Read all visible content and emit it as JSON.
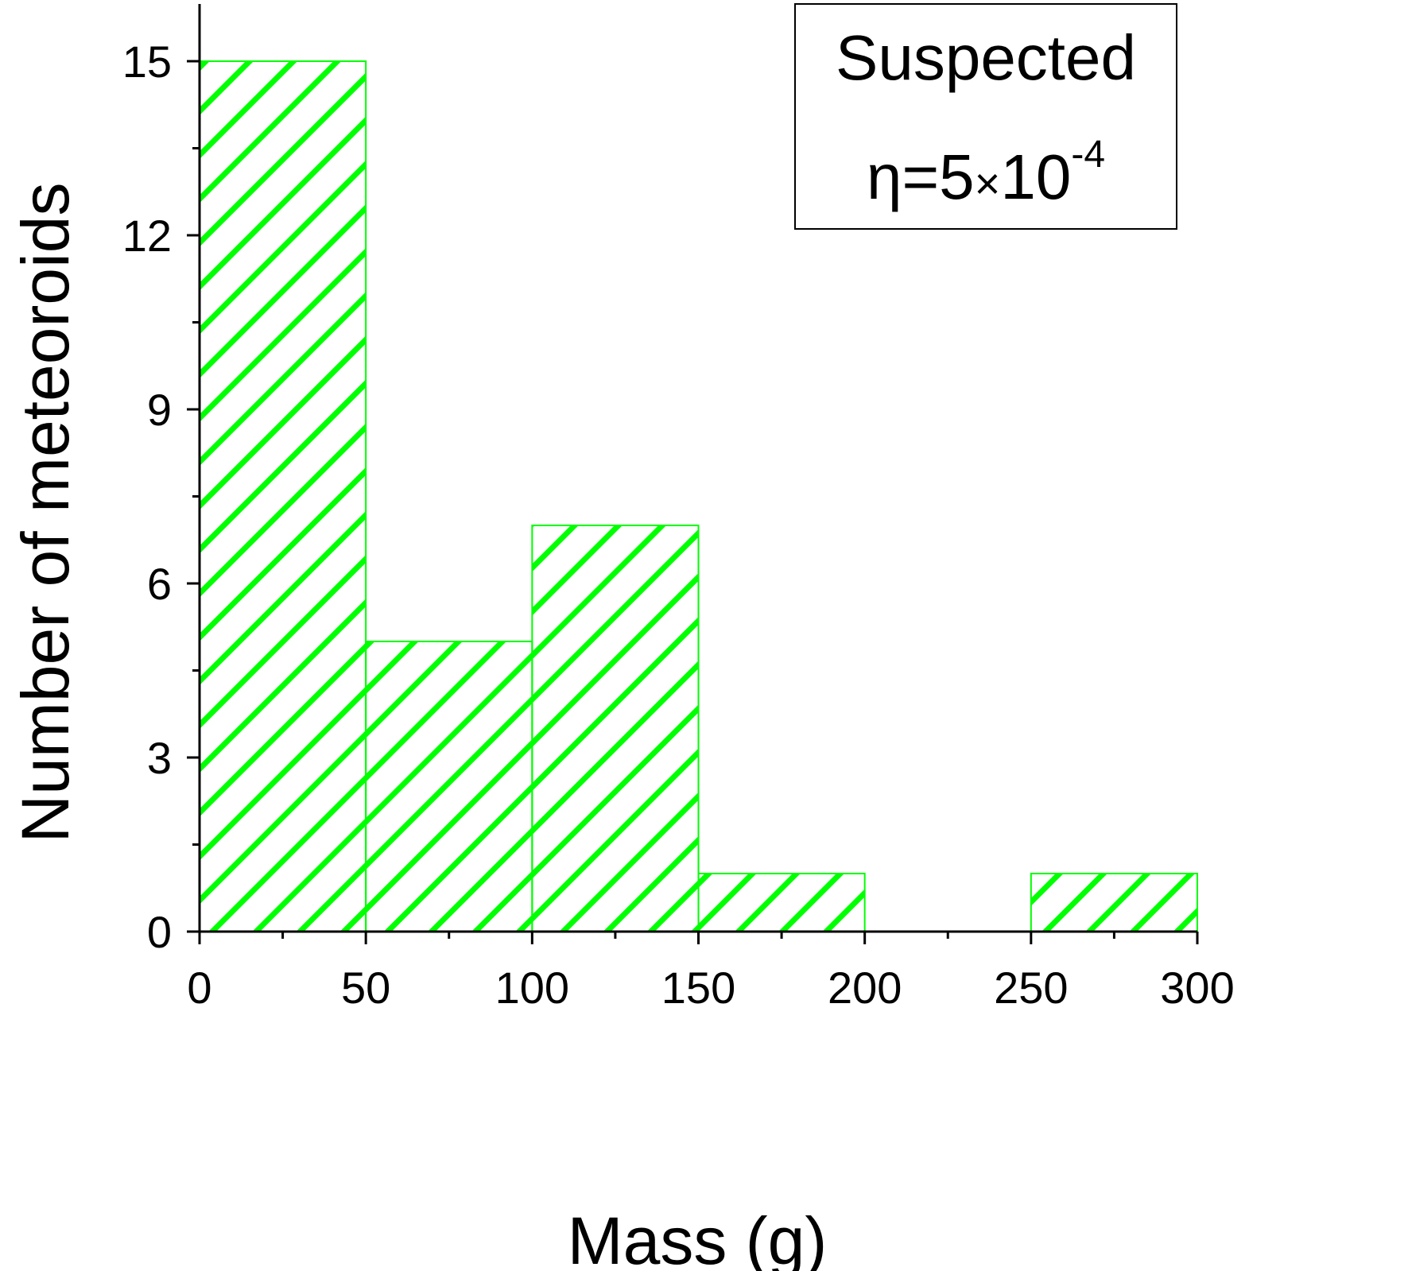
{
  "chart_data": {
    "type": "bar",
    "subtype": "histogram",
    "bins": [
      {
        "x_start": 0,
        "x_end": 50,
        "count": 15
      },
      {
        "x_start": 50,
        "x_end": 100,
        "count": 5
      },
      {
        "x_start": 100,
        "x_end": 150,
        "count": 7
      },
      {
        "x_start": 150,
        "x_end": 200,
        "count": 1
      },
      {
        "x_start": 200,
        "x_end": 250,
        "count": 0
      },
      {
        "x_start": 250,
        "x_end": 300,
        "count": 1
      }
    ],
    "xlabel": "Mass (g)",
    "ylabel": "Number of meteoroids",
    "xlim": [
      0,
      300
    ],
    "ylim": [
      0,
      16
    ],
    "x_ticks": [
      "0",
      "50",
      "100",
      "150",
      "200",
      "250",
      "300"
    ],
    "y_ticks": [
      "0",
      "3",
      "6",
      "9",
      "12",
      "15"
    ],
    "annotation": {
      "line1": "Suspected",
      "eta_symbol": "η",
      "eta_equals": "=5",
      "times_symbol": "×",
      "ten": "10",
      "exponent": "-4"
    },
    "grid": false,
    "colors": {
      "bar_hatch": "#00ff00",
      "axis": "#000000",
      "background": "#ffffff"
    },
    "fill_pattern": "diagonal-hatch"
  }
}
